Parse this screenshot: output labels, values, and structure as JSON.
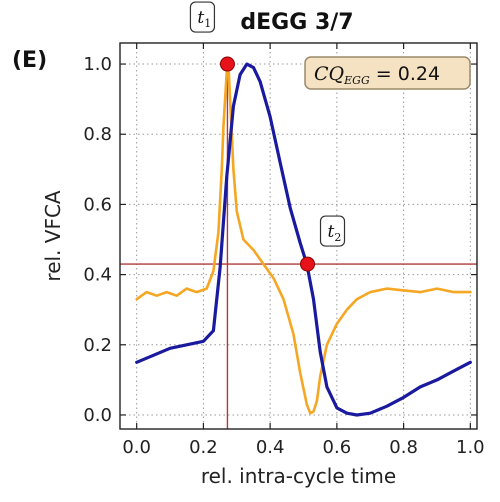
{
  "chart_data": {
    "type": "line",
    "panel_label": "(E)",
    "title": "dEGG 3/7",
    "xlabel": "rel. intra-cycle time",
    "ylabel": "rel. VFCA",
    "xlim": [
      -0.05,
      1.02
    ],
    "ylim": [
      -0.04,
      1.06
    ],
    "xticks": [
      0.0,
      0.2,
      0.4,
      0.6,
      0.8,
      1.0
    ],
    "xtick_labels": [
      "0.0",
      "0.2",
      "0.4",
      "0.6",
      "0.8",
      "1.0"
    ],
    "yticks": [
      0.0,
      0.2,
      0.4,
      0.6,
      0.8,
      1.0
    ],
    "ytick_labels": [
      "0.0",
      "0.2",
      "0.4",
      "0.6",
      "0.8",
      "1.0"
    ],
    "grid": true,
    "series": [
      {
        "color": "#1a1a9e",
        "x": [
          0.0,
          0.05,
          0.1,
          0.15,
          0.2,
          0.23,
          0.25,
          0.27,
          0.29,
          0.31,
          0.33,
          0.35,
          0.37,
          0.4,
          0.43,
          0.46,
          0.49,
          0.51,
          0.53,
          0.55,
          0.57,
          0.6,
          0.63,
          0.66,
          0.7,
          0.75,
          0.8,
          0.85,
          0.9,
          0.95,
          1.0
        ],
        "y": [
          0.15,
          0.17,
          0.19,
          0.2,
          0.21,
          0.24,
          0.42,
          0.68,
          0.88,
          0.97,
          1.0,
          0.99,
          0.95,
          0.85,
          0.72,
          0.59,
          0.49,
          0.43,
          0.33,
          0.18,
          0.08,
          0.02,
          0.005,
          0.0,
          0.005,
          0.025,
          0.05,
          0.08,
          0.1,
          0.125,
          0.15
        ]
      },
      {
        "color": "#f5a623",
        "x": [
          0.0,
          0.03,
          0.06,
          0.09,
          0.12,
          0.15,
          0.18,
          0.21,
          0.23,
          0.245,
          0.255,
          0.26,
          0.27,
          0.275,
          0.28,
          0.29,
          0.3,
          0.32,
          0.35,
          0.38,
          0.41,
          0.44,
          0.47,
          0.49,
          0.51,
          0.52,
          0.53,
          0.54,
          0.55,
          0.57,
          0.6,
          0.63,
          0.66,
          0.7,
          0.75,
          0.8,
          0.85,
          0.9,
          0.95,
          1.0
        ],
        "y": [
          0.33,
          0.35,
          0.34,
          0.35,
          0.34,
          0.36,
          0.35,
          0.36,
          0.41,
          0.52,
          0.7,
          0.82,
          0.98,
          1.0,
          0.9,
          0.7,
          0.58,
          0.5,
          0.47,
          0.43,
          0.39,
          0.33,
          0.23,
          0.12,
          0.03,
          0.005,
          0.01,
          0.04,
          0.11,
          0.2,
          0.26,
          0.3,
          0.33,
          0.35,
          0.36,
          0.355,
          0.35,
          0.36,
          0.35,
          0.35
        ]
      }
    ],
    "markers": [
      {
        "label": "t",
        "subscript": "1",
        "x": 0.272,
        "y": 1.0,
        "color": "#e8121b"
      },
      {
        "label": "t",
        "subscript": "2",
        "x": 0.512,
        "y": 0.43,
        "color": "#e8121b"
      }
    ],
    "reference_lines": {
      "vertical_x": 0.272,
      "horizontal_y": 0.43,
      "color": "#b03a3a"
    },
    "annotation_box": {
      "text_main": "CQ",
      "text_sub": "EGG",
      "text_rest": " = 0.24",
      "background": "#f5e2c2",
      "border": "#9a8a6a"
    }
  }
}
